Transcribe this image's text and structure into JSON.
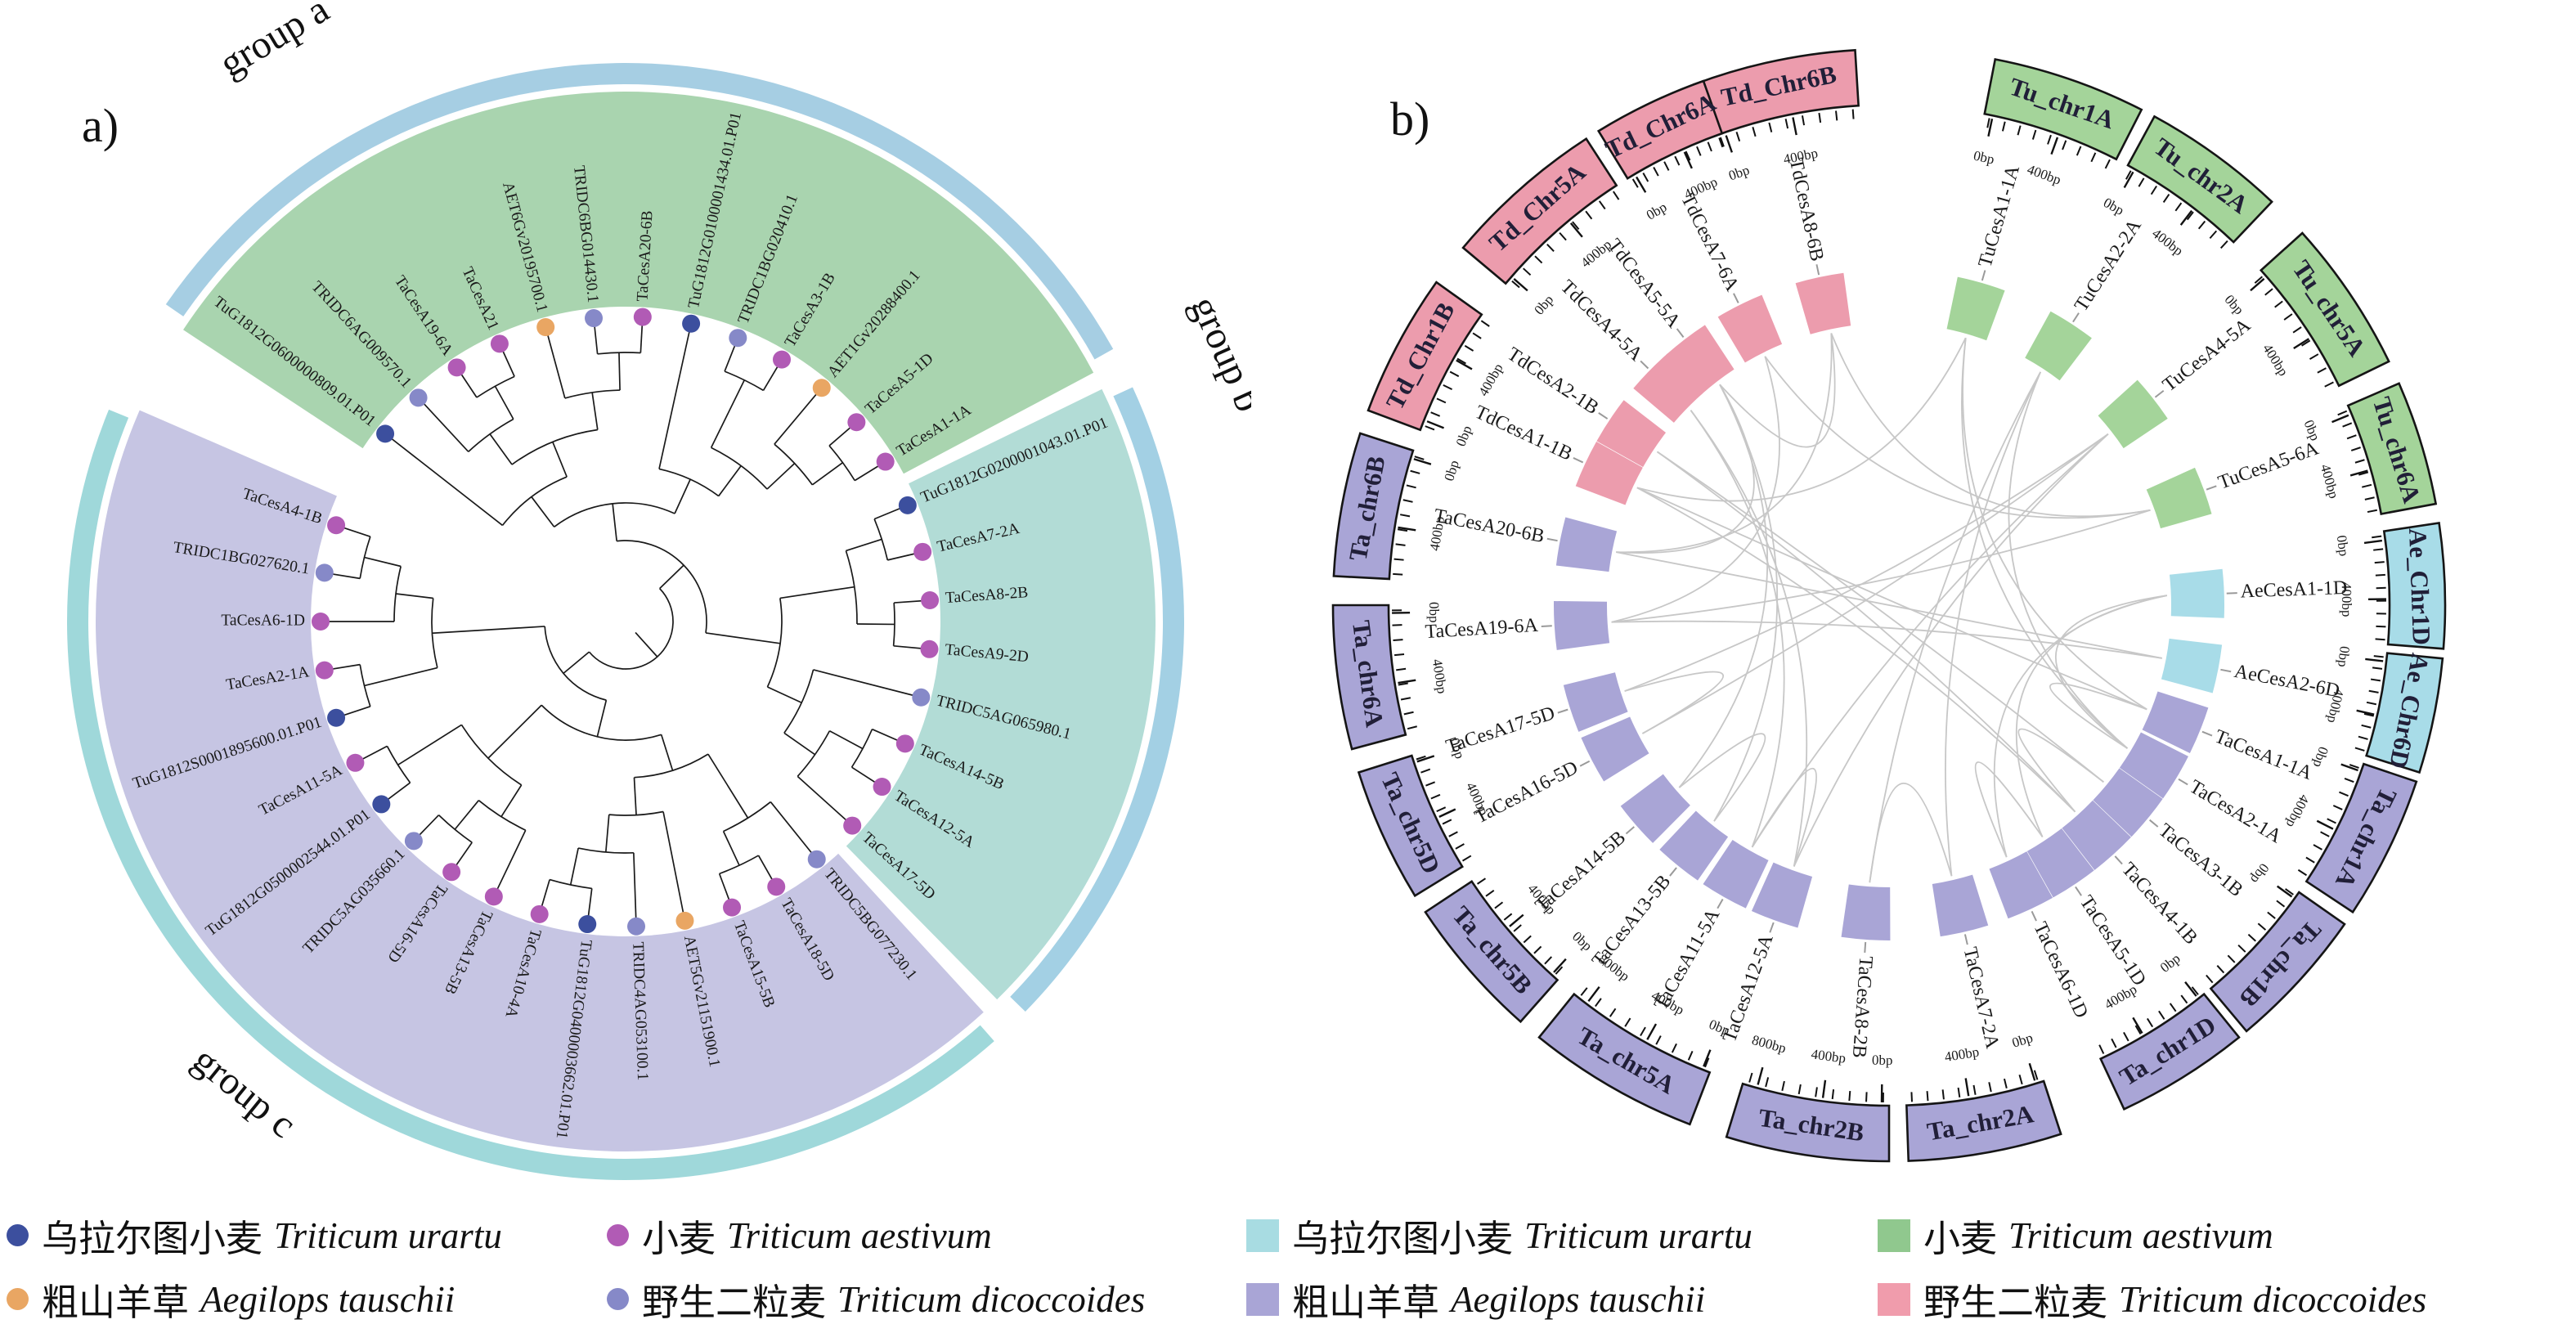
{
  "figure_title": "",
  "panel_a_letter": "a)",
  "panel_b_letter": "b)",
  "chart_data": [
    {
      "type": "circular-phylogenetic-tree",
      "title": "",
      "group_labels": {
        "a": "group a",
        "b": "group b",
        "c": "group c"
      },
      "species_colors": {
        "tu": "#3C4F9E",
        "ta": "#B15BB5",
        "ae": "#E9A663",
        "td": "#8689C8"
      },
      "sector_colors": {
        "a": "#A9D4AF",
        "b": "#B2DCD6",
        "c": "#C6C5E3"
      },
      "ring_colors": {
        "a": "#A6CEE3",
        "b": "#A3D0E4",
        "c": "#9FD8DA"
      },
      "leaf_start_angle": -52,
      "leaf_step_angle": 9.2,
      "groups": [
        {
          "id": "a",
          "a0": -56.6,
          "a1": 62.0
        },
        {
          "id": "b",
          "a0": 64.0,
          "a1": 135.5
        },
        {
          "id": "c",
          "a0": 137.5,
          "a1": 293.5
        }
      ],
      "leaves": [
        {
          "name": "TuG1812G0600000809.01.P01",
          "species": "tu"
        },
        {
          "name": "TRIDC6AG009570.1",
          "species": "td"
        },
        {
          "name": "TaCesA19-6A",
          "species": "ta"
        },
        {
          "name": "TaCesA21",
          "species": "ta"
        },
        {
          "name": "AET6Gv20195700.1",
          "species": "ae"
        },
        {
          "name": "TRIDC6BG014430.1",
          "species": "td"
        },
        {
          "name": "TaCesA20-6B",
          "species": "ta"
        },
        {
          "name": "TuG1812G0100001434.01.P01",
          "species": "tu"
        },
        {
          "name": "TRIDC1BG020410.1",
          "species": "td"
        },
        {
          "name": "TaCesA3-1B",
          "species": "ta"
        },
        {
          "name": "AET1Gv20288400.1",
          "species": "ae"
        },
        {
          "name": "TaCesA5-1D",
          "species": "ta"
        },
        {
          "name": "TaCesA1-1A",
          "species": "ta"
        },
        {
          "name": "TuG1812G0200001043.01.P01",
          "species": "tu"
        },
        {
          "name": "TaCesA7-2A",
          "species": "ta"
        },
        {
          "name": "TaCesA8-2B",
          "species": "ta"
        },
        {
          "name": "TaCesA9-2D",
          "species": "ta"
        },
        {
          "name": "TRIDC5AG065980.1",
          "species": "td"
        },
        {
          "name": "TaCesA14-5B",
          "species": "ta"
        },
        {
          "name": "TaCesA12-5A",
          "species": "ta"
        },
        {
          "name": "TaCesA17-5D",
          "species": "ta"
        },
        {
          "name": "TRIDC5BG077230.1",
          "species": "td"
        },
        {
          "name": "TaCesA18-5D",
          "species": "ta"
        },
        {
          "name": "TaCesA15-5B",
          "species": "ta"
        },
        {
          "name": "AET5Gv21151900.1",
          "species": "ae"
        },
        {
          "name": "TRIDC4AG053100.1",
          "species": "td"
        },
        {
          "name": "TuG1812G0400003662.01.P01",
          "species": "tu"
        },
        {
          "name": "TaCesA10-4A",
          "species": "ta"
        },
        {
          "name": "TaCesA13-5B",
          "species": "ta"
        },
        {
          "name": "TaCesA16-5D",
          "species": "ta"
        },
        {
          "name": "TRIDC5AG035660.1",
          "species": "td"
        },
        {
          "name": "TuG1812G0500002544.01.P01",
          "species": "tu"
        },
        {
          "name": "TaCesA11-5A",
          "species": "ta"
        },
        {
          "name": "TuG1812S0001895600.01.P01",
          "species": "tu"
        },
        {
          "name": "TaCesA2-1A",
          "species": "ta"
        },
        {
          "name": "TaCesA6-1D",
          "species": "ta"
        },
        {
          "name": "TRIDC1BG027620.1",
          "species": "td"
        },
        {
          "name": "TaCesA4-1B",
          "species": "ta"
        }
      ],
      "topology": [
        [
          [
            [
              0,
              [
                [
                  1,
                  [
                    2,
                    3
                  ]
                ],
                [
                  4,
                  [
                    5,
                    6
                  ]
                ]
              ]
            ],
            [
              7,
              [
                [
                  8,
                  9
                ],
                [
                  10,
                  [
                    11,
                    12
                  ]
                ]
              ]
            ]
          ],
          [
            [
              [
                13,
                14
              ],
              [
                15,
                16
              ]
            ],
            [
              17,
              [
                [
                  18,
                  19
                ],
                20
              ]
            ]
          ]
        ],
        [
          [
            [
              [
                21,
                [
                  22,
                  23
                ]
              ],
              [
                24,
                [
                  25,
                  [
                    26,
                    27
                  ]
                ]
              ]
            ],
            [
              [
                28,
                [
                  29,
                  30
                ]
              ],
              [
                31,
                32
              ]
            ]
          ],
          [
            [
              33,
              34
            ],
            [
              35,
              [
                36,
                37
              ]
            ]
          ]
        ]
      ]
    },
    {
      "type": "circos",
      "title": "",
      "species_colors": {
        "td": "#EC9CAD",
        "tu": "#A4D49A",
        "ae": "#A8DCE8",
        "ta": "#A9A5D6"
      },
      "segments": [
        {
          "name": "Td_Chr6B",
          "species": "td",
          "c": 348,
          "s": 17,
          "ticks": [
            {
              "l": "0bp",
              "f": 0.08
            },
            {
              "l": "400bp",
              "f": 0.55
            }
          ]
        },
        {
          "name": "Tu_chr1A",
          "species": "tu",
          "c": 19,
          "s": 16,
          "ticks": [
            {
              "l": "0bp",
              "f": 0.06
            },
            {
              "l": "400bp",
              "f": 0.55
            }
          ]
        },
        {
          "name": "Tu_chr2A",
          "species": "tu",
          "c": 36,
          "s": 15,
          "ticks": [
            {
              "l": "0bp",
              "f": 0.06
            },
            {
              "l": "400bp",
              "f": 0.6
            }
          ]
        },
        {
          "name": "Tu_chr5A",
          "species": "tu",
          "c": 56,
          "s": 16,
          "ticks": [
            {
              "l": "0bp",
              "f": 0.06
            },
            {
              "l": "400bp",
              "f": 0.6
            }
          ]
        },
        {
          "name": "Tu_chr6A",
          "species": "tu",
          "c": 73,
          "s": 13,
          "ticks": [
            {
              "l": "0bp",
              "f": 0.08
            },
            {
              "l": "400bp",
              "f": 0.6
            }
          ]
        },
        {
          "name": "Ae_Chr1D",
          "species": "ae",
          "c": 88,
          "s": 13,
          "ticks": [
            {
              "l": "0bp",
              "f": 0.08
            },
            {
              "l": "400bp",
              "f": 0.6
            }
          ]
        },
        {
          "name": "Ae_Chr6D",
          "species": "ae",
          "c": 101.5,
          "s": 12,
          "ticks": [
            {
              "l": "0bp",
              "f": 0.08
            },
            {
              "l": "400bp",
              "f": 0.6
            }
          ]
        },
        {
          "name": "Ta_chr1A",
          "species": "ta",
          "c": 116,
          "s": 15,
          "ticks": [
            {
              "l": "0bp",
              "f": 0.06
            },
            {
              "l": "400bp",
              "f": 0.55
            }
          ]
        },
        {
          "name": "Ta_chr1B",
          "species": "ta",
          "c": 132.5,
          "s": 15,
          "ticks": [
            {
              "l": "0bp",
              "f": 0.06
            }
          ]
        },
        {
          "name": "Ta_chr1D",
          "species": "ta",
          "c": 148,
          "s": 14,
          "ticks": [
            {
              "l": "0bp",
              "f": 0.06
            },
            {
              "l": "400bp",
              "f": 0.6
            }
          ]
        },
        {
          "name": "Ta_chr2A",
          "species": "ta",
          "c": 170,
          "s": 16,
          "ticks": [
            {
              "l": "0bp",
              "f": 0.06
            },
            {
              "l": "400bp",
              "f": 0.55
            }
          ]
        },
        {
          "name": "Ta_chr2B",
          "species": "ta",
          "c": 188.5,
          "s": 17,
          "ticks": [
            {
              "l": "0bp",
              "f": 0.05
            },
            {
              "l": "400bp",
              "f": 0.45
            },
            {
              "l": "800bp",
              "f": 0.9
            }
          ]
        },
        {
          "name": "Ta_chr5A",
          "species": "ta",
          "c": 210,
          "s": 18,
          "ticks": [
            {
              "l": "0bp",
              "f": 0.05
            },
            {
              "l": "400bp",
              "f": 0.45
            },
            {
              "l": "800bp",
              "f": 0.9
            }
          ]
        },
        {
          "name": "Ta_chr5B",
          "species": "ta",
          "c": 229,
          "s": 15,
          "ticks": [
            {
              "l": "0bp",
              "f": 0.06
            },
            {
              "l": "400bp",
              "f": 0.55
            }
          ]
        },
        {
          "name": "Ta_chr5D",
          "species": "ta",
          "c": 245.5,
          "s": 14,
          "ticks": [
            {
              "l": "0bp",
              "f": 0.94
            },
            {
              "l": "400bp",
              "f": 0.45
            }
          ]
        },
        {
          "name": "Ta_chr6A",
          "species": "ta",
          "c": 262.5,
          "s": 15,
          "ticks": [
            {
              "l": "0bp",
              "f": 0.94
            },
            {
              "l": "400bp",
              "f": 0.4
            }
          ]
        },
        {
          "name": "Ta_chr6B",
          "species": "ta",
          "c": 280.5,
          "s": 15,
          "ticks": [
            {
              "l": "0bp",
              "f": 0.94
            },
            {
              "l": "400bp",
              "f": 0.4
            }
          ]
        },
        {
          "name": "Td_Chr1B",
          "species": "td",
          "c": 298,
          "s": 15,
          "ticks": [
            {
              "l": "0bp",
              "f": 0.08
            },
            {
              "l": "400bp",
              "f": 0.6
            }
          ]
        },
        {
          "name": "Td_Chr5A",
          "species": "td",
          "c": 318.5,
          "s": 17,
          "ticks": [
            {
              "l": "0bp",
              "f": 0.06
            },
            {
              "l": "400bp",
              "f": 0.6
            }
          ]
        },
        {
          "name": "Td_Chr6A",
          "species": "td",
          "c": 334.5,
          "s": 12,
          "ticks": [
            {
              "l": "0bp",
              "f": 0.08
            },
            {
              "l": "400bp",
              "f": 0.6
            }
          ]
        }
      ],
      "genes": [
        {
          "name": "TdCesA8-6B",
          "species": "td",
          "a": 348
        },
        {
          "name": "TuCesA1-1A",
          "species": "tu",
          "a": 16
        },
        {
          "name": "TuCesA2-2A",
          "species": "tu",
          "a": 33
        },
        {
          "name": "TuCesA4-5A",
          "species": "tu",
          "a": 52
        },
        {
          "name": "TuCesA5-6A",
          "species": "tu",
          "a": 70
        },
        {
          "name": "AeCesA1-1D",
          "species": "ae",
          "a": 88
        },
        {
          "name": "AeCesA2-6D",
          "species": "ae",
          "a": 101
        },
        {
          "name": "TaCesA1-1A",
          "species": "ta",
          "a": 112
        },
        {
          "name": "TaCesA2-1A",
          "species": "ta",
          "a": 121
        },
        {
          "name": "TaCesA3-1B",
          "species": "ta",
          "a": 129.5
        },
        {
          "name": "TaCesA4-1B",
          "species": "ta",
          "a": 138
        },
        {
          "name": "TaCesA5-1D",
          "species": "ta",
          "a": 146.5
        },
        {
          "name": "TaCesA6-1D",
          "species": "ta",
          "a": 155
        },
        {
          "name": "TaCesA7-2A",
          "species": "ta",
          "a": 167
        },
        {
          "name": "TaCesA8-2B",
          "species": "ta",
          "a": 184
        },
        {
          "name": "TaCesA12-5A",
          "species": "ta",
          "a": 200
        },
        {
          "name": "TaCesA11-5A",
          "species": "ta",
          "a": 209.5
        },
        {
          "name": "TaCesA13-5B",
          "species": "ta",
          "a": 219
        },
        {
          "name": "TaCesA14-5B",
          "species": "ta",
          "a": 229
        },
        {
          "name": "TaCesA16-5D",
          "species": "ta",
          "a": 242.5
        },
        {
          "name": "TaCesA17-5D",
          "species": "ta",
          "a": 252
        },
        {
          "name": "TaCesA19-6A",
          "species": "ta",
          "a": 266.5
        },
        {
          "name": "TaCesA20-6B",
          "species": "ta",
          "a": 281
        },
        {
          "name": "TdCesA1-1B",
          "species": "td",
          "a": 295
        },
        {
          "name": "TdCesA2-1B",
          "species": "td",
          "a": 303.5
        },
        {
          "name": "TdCesA4-5A",
          "species": "td",
          "a": 314.5
        },
        {
          "name": "TdCesA5-5A",
          "species": "td",
          "a": 322.5
        },
        {
          "name": "TdCesA7-6A",
          "species": "td",
          "a": 333.5
        }
      ],
      "links": [
        [
          1,
          7
        ],
        [
          1,
          23
        ],
        [
          7,
          23
        ],
        [
          5,
          12
        ],
        [
          5,
          11
        ],
        [
          11,
          12
        ],
        [
          2,
          13
        ],
        [
          2,
          14
        ],
        [
          13,
          14
        ],
        [
          3,
          15
        ],
        [
          3,
          16
        ],
        [
          15,
          16
        ],
        [
          24,
          9
        ],
        [
          24,
          10
        ],
        [
          9,
          10
        ],
        [
          23,
          10
        ],
        [
          4,
          21
        ],
        [
          4,
          27
        ],
        [
          21,
          27
        ],
        [
          0,
          22
        ],
        [
          0,
          26
        ],
        [
          22,
          26
        ],
        [
          6,
          21
        ],
        [
          6,
          22
        ],
        [
          25,
          16
        ],
        [
          25,
          15
        ],
        [
          17,
          18
        ],
        [
          17,
          26
        ],
        [
          18,
          26
        ],
        [
          19,
          20
        ],
        [
          19,
          3
        ],
        [
          20,
          3
        ],
        [
          8,
          7
        ],
        [
          8,
          1
        ],
        [
          5,
          8
        ],
        [
          0,
          4
        ],
        [
          2,
          8
        ]
      ]
    }
  ],
  "legend_a": {
    "items": [
      {
        "marker": "dot",
        "color": "#3C4F9E",
        "zh": "乌拉尔图小麦",
        "latin": "Triticum urartu"
      },
      {
        "marker": "dot",
        "color": "#B15BB5",
        "zh": "小麦",
        "latin": "Triticum aestivum"
      },
      {
        "marker": "dot",
        "color": "#E9A663",
        "zh": "粗山羊草",
        "latin": "Aegilops tauschii"
      },
      {
        "marker": "dot",
        "color": "#8689C8",
        "zh": "野生二粒麦",
        "latin": "Triticum dicoccoides"
      }
    ]
  },
  "legend_b": {
    "items": [
      {
        "marker": "square",
        "color": "#A8DCE2",
        "zh": "乌拉尔图小麦",
        "latin": "Triticum urartu"
      },
      {
        "marker": "square",
        "color": "#90C88E",
        "zh": "小麦",
        "latin": "Triticum aestivum"
      },
      {
        "marker": "square",
        "color": "#A9A5D6",
        "zh": "粗山羊草",
        "latin": "Aegilops tauschii"
      },
      {
        "marker": "square",
        "color": "#F09CAC",
        "zh": "野生二粒麦",
        "latin": "Triticum dicoccoides"
      }
    ]
  }
}
